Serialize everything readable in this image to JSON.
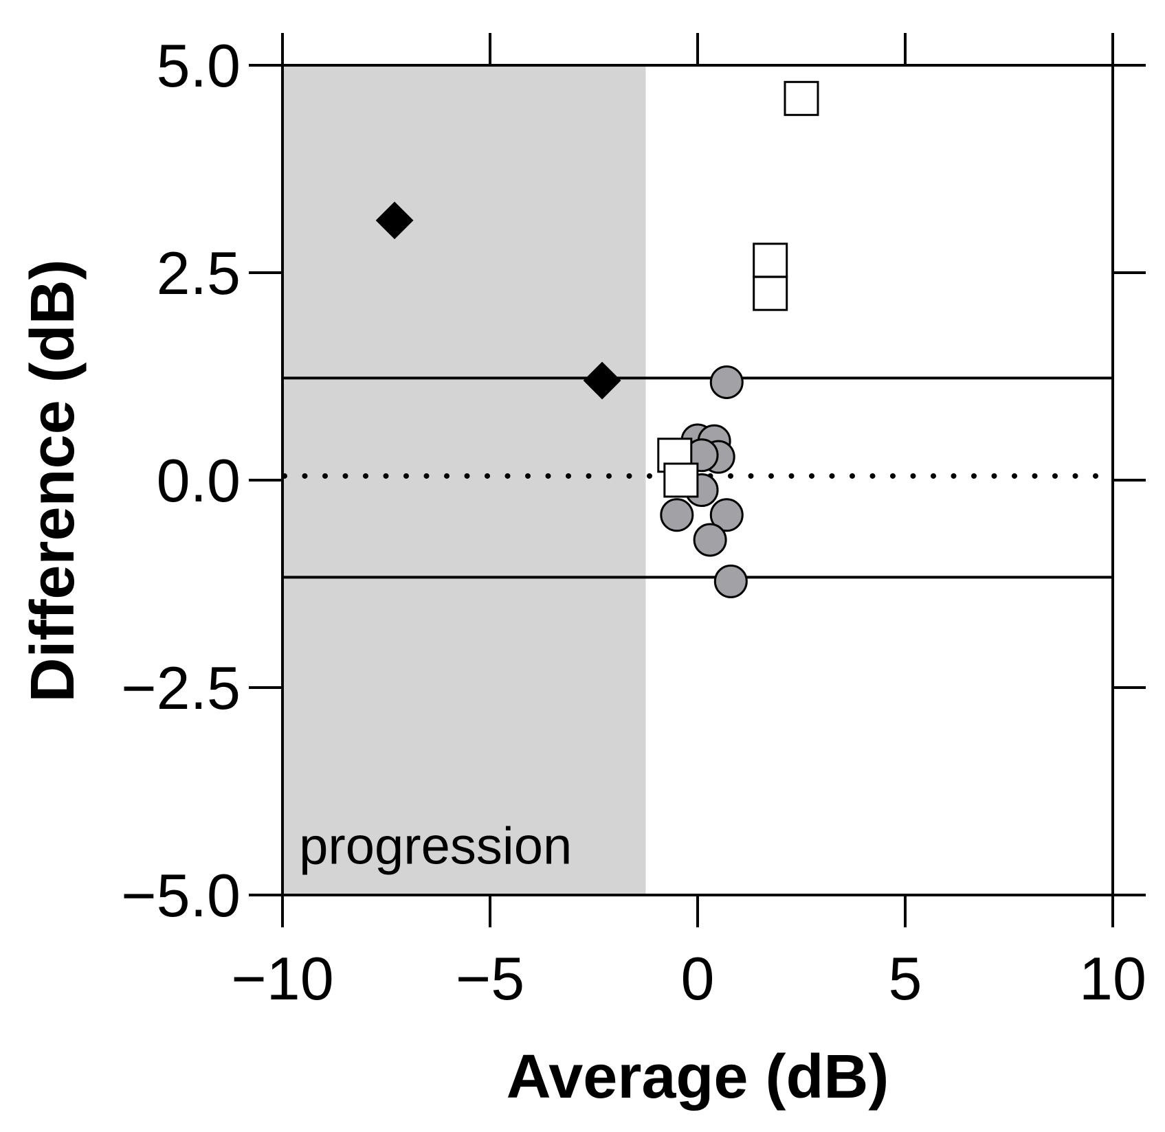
{
  "chart_data": {
    "type": "scatter",
    "title": "",
    "xlabel": "Average (dB)",
    "ylabel": "Difference (dB)",
    "xlim": [
      -10,
      10
    ],
    "ylim": [
      -5,
      5
    ],
    "xticks": [
      -10,
      -5,
      0,
      5,
      10
    ],
    "yticks": [
      -5,
      -2.5,
      0,
      2.5,
      5
    ],
    "xtick_labels": [
      "−10",
      "−5",
      "0",
      "5",
      "10"
    ],
    "ytick_labels": [
      "−5.0",
      "−2.5",
      "0.0",
      "2.5",
      "5.0"
    ],
    "shaded_region": {
      "x_from": -10,
      "x_to": -1.25,
      "color": "#d4d4d4"
    },
    "annotation": {
      "text": "progression",
      "x": -9.6,
      "y": -4.5
    },
    "mean_line": {
      "y": 0.05,
      "style": "dotted"
    },
    "limit_lines": [
      {
        "y": 1.23,
        "style": "solid"
      },
      {
        "y": -1.17,
        "style": "solid"
      }
    ],
    "series": [
      {
        "name": "gray circles",
        "marker": "circle",
        "fill": "#a2a2a6",
        "points": [
          {
            "x": 0.7,
            "y": 1.18
          },
          {
            "x": 0.0,
            "y": 0.48
          },
          {
            "x": 0.4,
            "y": 0.47
          },
          {
            "x": 0.5,
            "y": 0.28
          },
          {
            "x": 0.1,
            "y": 0.3
          },
          {
            "x": 0.1,
            "y": -0.12
          },
          {
            "x": -0.5,
            "y": -0.42
          },
          {
            "x": 0.7,
            "y": -0.42
          },
          {
            "x": 0.3,
            "y": -0.72
          },
          {
            "x": 0.8,
            "y": -1.22
          }
        ]
      },
      {
        "name": "open squares",
        "marker": "square",
        "fill": "#ffffff",
        "points": [
          {
            "x": 2.5,
            "y": 4.6
          },
          {
            "x": 1.75,
            "y": 2.65
          },
          {
            "x": 1.75,
            "y": 2.25
          },
          {
            "x": -0.55,
            "y": 0.3
          },
          {
            "x": -0.4,
            "y": 0.0
          }
        ]
      },
      {
        "name": "black diamonds",
        "marker": "diamond",
        "fill": "#000000",
        "points": [
          {
            "x": -7.3,
            "y": 3.13
          },
          {
            "x": -2.3,
            "y": 1.2
          }
        ]
      }
    ]
  }
}
